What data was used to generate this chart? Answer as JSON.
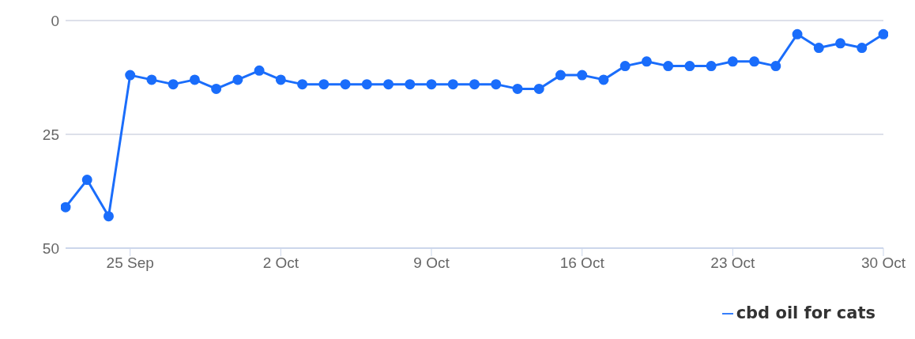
{
  "chart_data": {
    "type": "line",
    "x": [
      "--09-22",
      "--09-23",
      "--09-24",
      "--09-25",
      "--09-26",
      "--09-27",
      "--09-28",
      "--09-29",
      "--09-30",
      "--10-01",
      "--10-02",
      "--10-03",
      "--10-04",
      "--10-05",
      "--10-06",
      "--10-07",
      "--10-08",
      "--10-09",
      "--10-10",
      "--10-11",
      "--10-12",
      "--10-13",
      "--10-14",
      "--10-15",
      "--10-16",
      "--10-17",
      "--10-18",
      "--10-19",
      "--10-20",
      "--10-21",
      "--10-22",
      "--10-23",
      "--10-24",
      "--10-25",
      "--10-26",
      "--10-27",
      "--10-28",
      "--10-29",
      "--10-30"
    ],
    "series": [
      {
        "name": "cbd oil for cats",
        "color": "#1a6dfb",
        "values": [
          41,
          35,
          43,
          12,
          13,
          14,
          13,
          15,
          13,
          11,
          13,
          14,
          14,
          14,
          14,
          14,
          14,
          14,
          14,
          14,
          14,
          15,
          15,
          12,
          12,
          13,
          10,
          9,
          10,
          10,
          10,
          9,
          9,
          10,
          3,
          6,
          5,
          6,
          3
        ]
      }
    ],
    "ylim": [
      50,
      0
    ],
    "yticks": [
      0,
      25,
      50
    ],
    "xlim": [
      "--09-22",
      "--10-30"
    ],
    "xticks": [
      {
        "value": "--09-25",
        "label": "25 Sep"
      },
      {
        "value": "--10-02",
        "label": "2 Oct"
      },
      {
        "value": "--10-09",
        "label": "9 Oct"
      },
      {
        "value": "--10-16",
        "label": "16 Oct"
      },
      {
        "value": "--10-23",
        "label": "23 Oct"
      },
      {
        "value": "--10-30",
        "label": "30 Oct"
      }
    ],
    "grid": "y",
    "legend": "bottom right",
    "marker": "circle",
    "line_style": "solid"
  }
}
